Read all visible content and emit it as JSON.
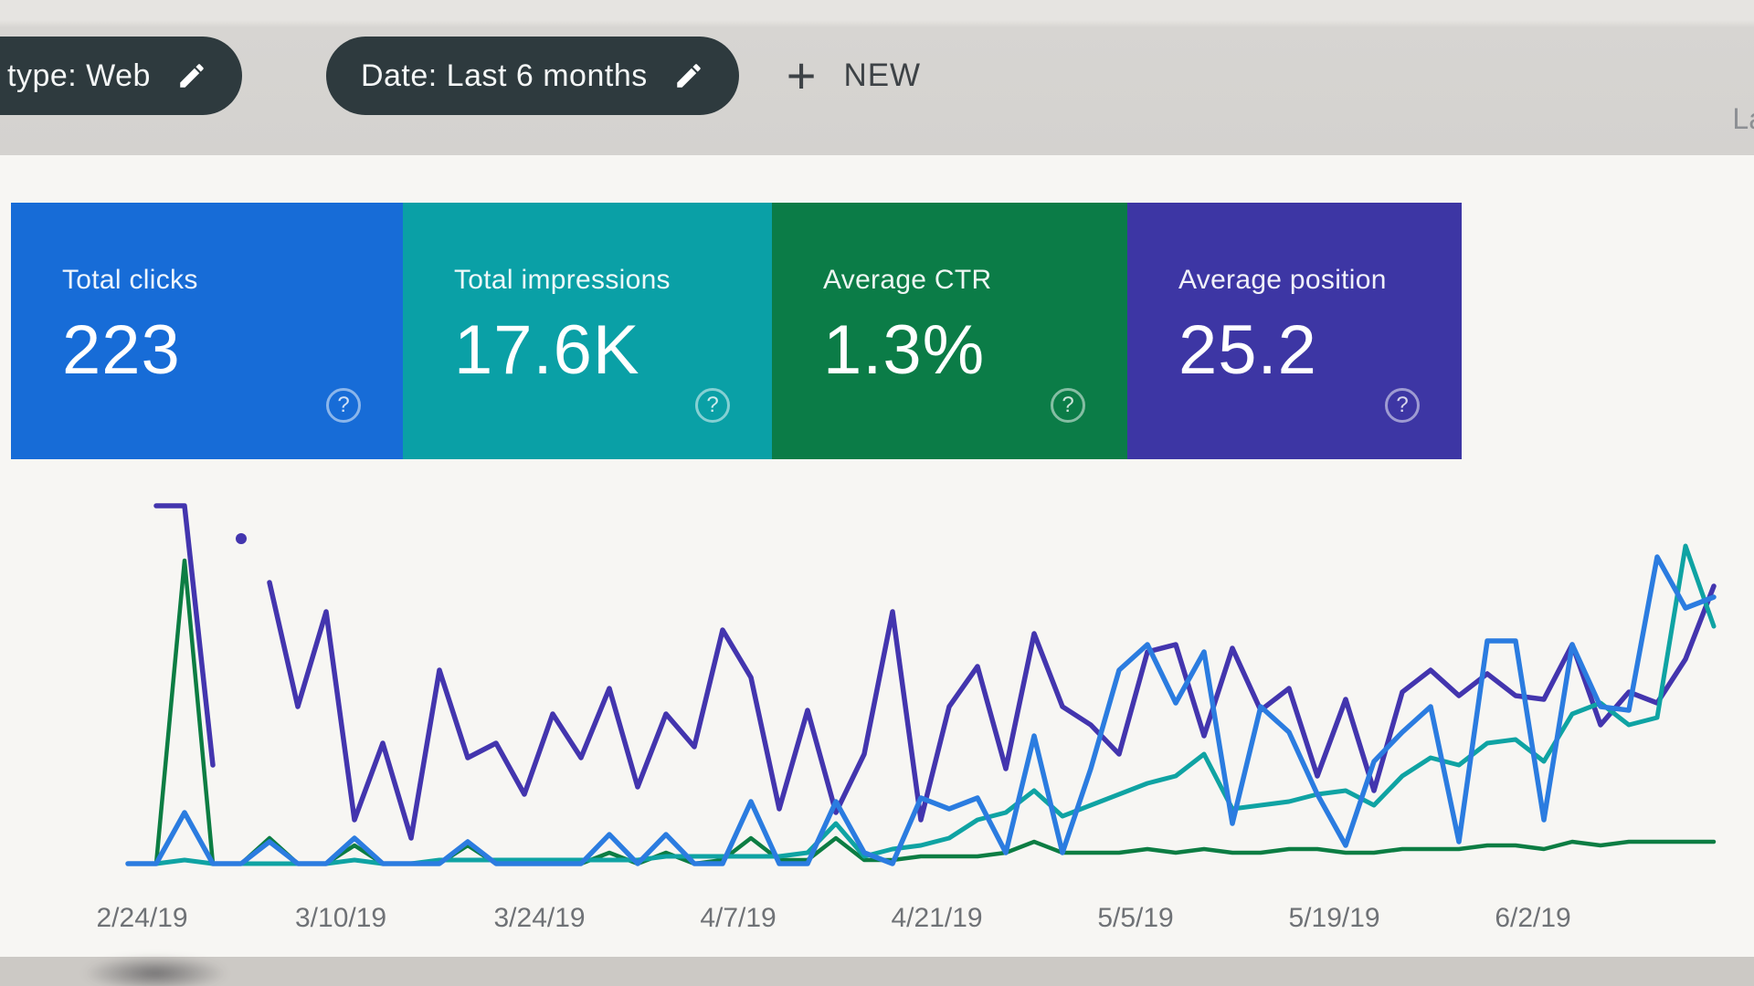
{
  "filter_bar": {
    "chips": [
      {
        "label": "type: Web"
      },
      {
        "label": "Date: Last 6 months"
      }
    ],
    "new_button_label": "NEW",
    "plus_glyph": "+",
    "top_right_partial": "La"
  },
  "icons": {
    "edit": "pencil",
    "add": "+",
    "help": "?"
  },
  "cards": [
    {
      "id": "clicks",
      "label": "Total clicks",
      "value": "223",
      "color": "#176cd7"
    },
    {
      "id": "impressions",
      "label": "Total impressions",
      "value": "17.6K",
      "color": "#0aa0a6"
    },
    {
      "id": "ctr",
      "label": "Average CTR",
      "value": "1.3%",
      "color": "#0b7c47"
    },
    {
      "id": "position",
      "label": "Average position",
      "value": "25.2",
      "color": "#3d36a4"
    }
  ],
  "chart_data": {
    "type": "line",
    "x_labels": [
      "2/24/19",
      "3/10/19",
      "3/24/19",
      "4/7/19",
      "4/21/19",
      "5/5/19",
      "5/19/19",
      "6/2/19"
    ],
    "x_range_days": 112,
    "y_scale": "relative 0-100 (visual height, baseline 0)",
    "grid": false,
    "legend": "none (colors match metric cards)",
    "series": [
      {
        "id": "position",
        "name": "Average position",
        "color": "#4335ae",
        "width": 5.5,
        "values": [
          null,
          99,
          99,
          28,
          null,
          78,
          44,
          70,
          13,
          34,
          8,
          54,
          30,
          34,
          20,
          42,
          30,
          49,
          22,
          42,
          33,
          65,
          52,
          16,
          43,
          15,
          31,
          70,
          13,
          44,
          55,
          27,
          64,
          44,
          39,
          31,
          59,
          61,
          36,
          60,
          43,
          49,
          25,
          46,
          21,
          48,
          54,
          47,
          53,
          47,
          46,
          61,
          39,
          48,
          45,
          57,
          77
        ]
      },
      {
        "id": "ctr",
        "name": "Average CTR",
        "color": "#0c7d43",
        "width": 4.5,
        "values": [
          1,
          1,
          84,
          1,
          1,
          8,
          1,
          1,
          6,
          1,
          1,
          1,
          6,
          1,
          1,
          1,
          1,
          4,
          1,
          4,
          1,
          2,
          8,
          2,
          2,
          8,
          2,
          2,
          3,
          3,
          3,
          4,
          7,
          4,
          4,
          4,
          5,
          4,
          5,
          4,
          4,
          5,
          5,
          4,
          4,
          5,
          5,
          5,
          6,
          6,
          5,
          7,
          6,
          7,
          7,
          7,
          7
        ]
      },
      {
        "id": "impressions",
        "name": "Total impressions",
        "color": "#0fa3a3",
        "width": 5,
        "values": [
          1,
          1,
          2,
          1,
          1,
          1,
          1,
          1,
          2,
          1,
          1,
          2,
          2,
          2,
          2,
          2,
          2,
          2,
          2,
          3,
          3,
          3,
          3,
          3,
          4,
          12,
          3,
          5,
          6,
          8,
          13,
          15,
          21,
          14,
          17,
          20,
          23,
          25,
          31,
          16,
          17,
          18,
          20,
          21,
          17,
          25,
          30,
          28,
          34,
          35,
          29,
          42,
          45,
          39,
          41,
          88,
          66
        ]
      },
      {
        "id": "clicks",
        "name": "Total clicks",
        "color": "#2b7ce0",
        "width": 5.5,
        "values": [
          1,
          1,
          15,
          1,
          1,
          7,
          1,
          1,
          8,
          1,
          1,
          1,
          7,
          1,
          1,
          1,
          1,
          9,
          1,
          9,
          1,
          1,
          18,
          1,
          1,
          18,
          4,
          1,
          19,
          16,
          19,
          4,
          36,
          4,
          27,
          54,
          61,
          45,
          59,
          12,
          44,
          37,
          20,
          6,
          29,
          37,
          44,
          7,
          62,
          62,
          13,
          61,
          44,
          43,
          85,
          71,
          74
        ]
      }
    ],
    "isolated_point": {
      "series": "position",
      "index": 4,
      "value": 90,
      "color": "#4335ae"
    }
  }
}
